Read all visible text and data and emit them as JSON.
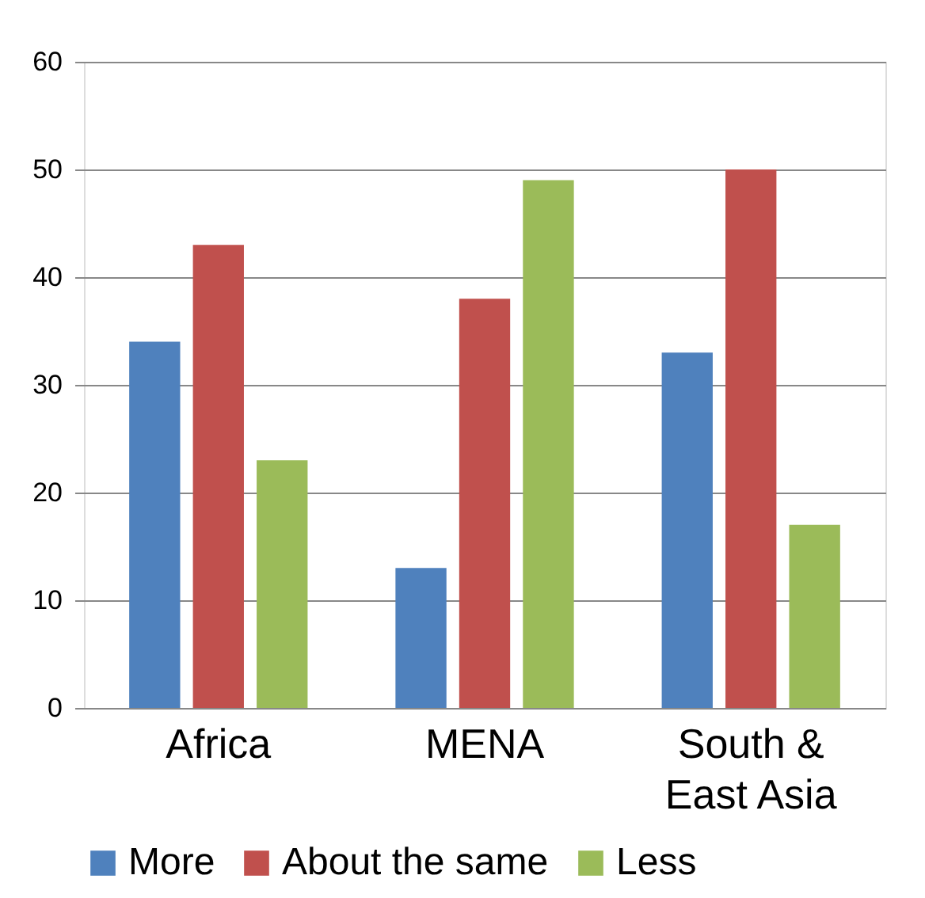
{
  "chart_data": {
    "type": "bar",
    "categories": [
      "Africa",
      "MENA",
      "South &\nEast Asia"
    ],
    "series": [
      {
        "name": "More",
        "color": "#4f81bd",
        "values": [
          34,
          13,
          33
        ]
      },
      {
        "name": "About the same",
        "color": "#c0504d",
        "values": [
          43,
          38,
          50
        ]
      },
      {
        "name": "Less",
        "color": "#9bbb59",
        "values": [
          23,
          49,
          17
        ]
      }
    ],
    "ylim": [
      0,
      60
    ],
    "yticks": [
      0,
      10,
      20,
      30,
      40,
      50,
      60
    ],
    "grid": "y",
    "legend": "bottom"
  }
}
